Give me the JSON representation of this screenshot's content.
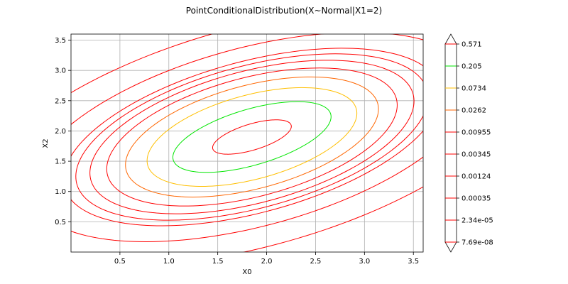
{
  "chart_data": {
    "type": "contour",
    "title": "PointConditionalDistribution(X~Normal|X1=2)",
    "xlabel": "X0",
    "ylabel": "X2",
    "xlim": [
      0.0,
      3.6
    ],
    "ylim": [
      0.0,
      3.6
    ],
    "x_ticks": [
      "0.5",
      "1.0",
      "1.5",
      "2.0",
      "2.5",
      "3.0",
      "3.5"
    ],
    "y_ticks": [
      "0.5",
      "1.0",
      "1.5",
      "2.0",
      "2.5",
      "3.0",
      "3.5"
    ],
    "grid": true,
    "contours": [
      {
        "level": "0.571",
        "color": "#ff0000",
        "a": 0.45,
        "b": 0.2
      },
      {
        "level": "0.205",
        "color": "#00e600",
        "a": 0.9,
        "b": 0.43
      },
      {
        "level": "0.0734",
        "color": "#ffbf00",
        "a": 1.18,
        "b": 0.65
      },
      {
        "level": "0.0262",
        "color": "#ff6600",
        "a": 1.42,
        "b": 0.8
      },
      {
        "level": "0.00955",
        "color": "#ff0000",
        "a": 1.63,
        "b": 0.92
      },
      {
        "level": "0.00345",
        "color": "#ff0000",
        "a": 1.82,
        "b": 1.02
      },
      {
        "level": "0.00124",
        "color": "#ff0000",
        "a": 1.98,
        "b": 1.1
      },
      {
        "level": "0.00035",
        "color": "#ff0000",
        "a": 2.12,
        "b": 1.17
      },
      {
        "level": "2.34e-05",
        "color": "#ff0000",
        "a": 2.5,
        "b": 1.38
      },
      {
        "level": "7.69e-08",
        "color": "#ff0000",
        "a": 3.1,
        "b": 1.7
      }
    ],
    "center": [
      1.85,
      1.9
    ],
    "angle_deg": 30,
    "colorbar": {
      "labels": [
        "0.571",
        "0.205",
        "0.0734",
        "0.0262",
        "0.00955",
        "0.00345",
        "0.00124",
        "0.00035",
        "2.34e-05",
        "7.69e-08"
      ],
      "colors": [
        "#ff0000",
        "#00e600",
        "#ffbf00",
        "#ff6600",
        "#ff0000",
        "#ff0000",
        "#ff0000",
        "#ff0000",
        "#ff0000",
        "#ff0000"
      ]
    }
  }
}
